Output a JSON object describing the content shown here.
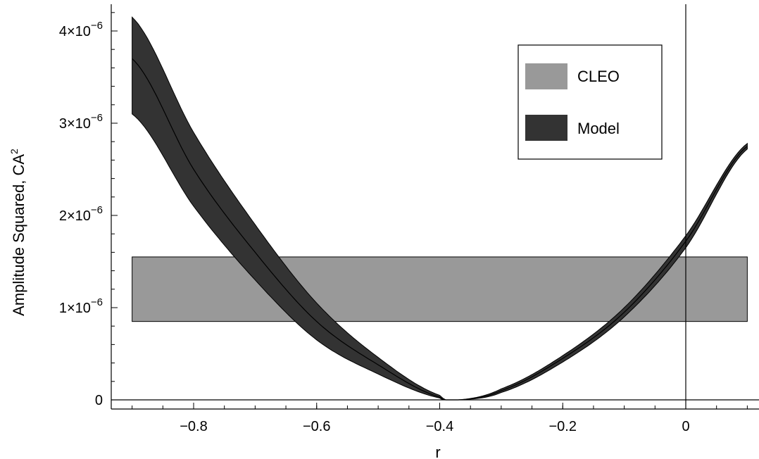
{
  "chart_data": {
    "type": "area",
    "xlabel": "r",
    "ylabel": "Amplitude Squared,  CA",
    "ylabel_superscript": "2",
    "xlim": [
      -0.9,
      0.1
    ],
    "ylim": [
      0,
      4.2e-06
    ],
    "x_ticks": [
      -0.8,
      -0.6,
      -0.4,
      -0.2,
      0
    ],
    "x_tick_labels": [
      "−0.8",
      "−0.6",
      "−0.4",
      "−0.2",
      "0"
    ],
    "y_ticks": [
      0,
      1e-06,
      2e-06,
      3e-06,
      4e-06
    ],
    "y_tick_labels": [
      {
        "mantissa": "0",
        "exponent": ""
      },
      {
        "mantissa": "1×10",
        "exponent": "−6"
      },
      {
        "mantissa": "2×10",
        "exponent": "−6"
      },
      {
        "mantissa": "3×10",
        "exponent": "−6"
      },
      {
        "mantissa": "4×10",
        "exponent": "−6"
      }
    ],
    "grid": false,
    "legend_position": "top-right",
    "cleo_band": {
      "name": "CLEO",
      "y_low": 8.5e-07,
      "y_high": 1.55e-06,
      "color": "#999999"
    },
    "model_band": {
      "name": "Model",
      "color": "#333333",
      "x": [
        -0.9,
        -0.8,
        -0.7,
        -0.6,
        -0.5,
        -0.4,
        -0.37,
        -0.3,
        -0.2,
        -0.1,
        0,
        0.1
      ],
      "center": [
        3.7e-06,
        2.5e-06,
        1.6e-06,
        8.5e-07,
        3.8e-07,
        3e-08,
        0.0,
        1e-07,
        4.5e-07,
        9.5e-07,
        1.72e-06,
        2.75e-06
      ],
      "upper": [
        4.15e-06,
        2.9e-06,
        1.9e-06,
        1.05e-06,
        4.6e-07,
        5e-08,
        0.0,
        1.2e-07,
        4.8e-07,
        1e-06,
        1.78e-06,
        2.78e-06
      ],
      "lower": [
        3.1e-06,
        2.1e-06,
        1.3e-06,
        6.5e-07,
        2.8e-07,
        2e-08,
        0.0,
        8e-08,
        4.1e-07,
        9e-07,
        1.65e-06,
        2.72e-06
      ]
    },
    "legend": [
      {
        "label": "CLEO",
        "color": "#999999"
      },
      {
        "label": "Model",
        "color": "#333333"
      }
    ],
    "vertical_reference_line_x": 0
  }
}
